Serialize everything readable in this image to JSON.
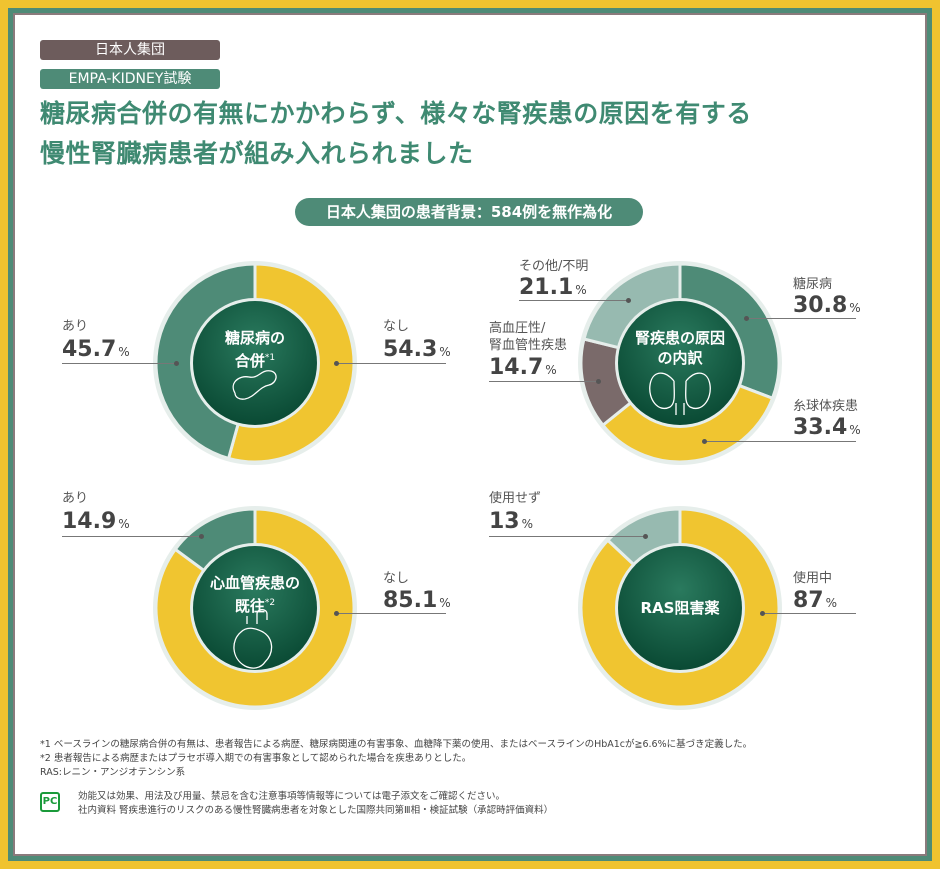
{
  "tags": {
    "population": "日本人集団",
    "trial": "EMPA-KIDNEY試験"
  },
  "title": {
    "line1": "糖尿病合併の有無にかかわらず、様々な腎疾患の原因を有する",
    "line2": "慢性腎臓病患者が組み入れられました"
  },
  "subtitle": "日本人集団の患者背景：584例を無作為化",
  "colors": {
    "green": "#4e8b77",
    "yellow": "#f0c530",
    "mauve": "#7a6a6a",
    "light_green": "#97bab0",
    "center": "#0f5a40"
  },
  "chart_data": [
    {
      "type": "pie",
      "title": "糖尿病の合併",
      "title_line1": "糖尿病の",
      "title_line2": "合併",
      "note_mark": "*1",
      "icon": "pancreas-icon",
      "unit": "%",
      "slices": [
        {
          "label": "なし",
          "value": 54.3,
          "color": "#f0c530"
        },
        {
          "label": "あり",
          "value": 45.7,
          "color": "#4e8b77"
        }
      ]
    },
    {
      "type": "pie",
      "title": "腎疾患の原因の内訳",
      "title_line1": "腎疾患の原因",
      "title_line2": "の内訳",
      "icon": "kidney-icon",
      "unit": "%",
      "slices": [
        {
          "label": "糖尿病",
          "value": 30.8,
          "color": "#4e8b77"
        },
        {
          "label": "糸球体疾患",
          "value": 33.4,
          "color": "#f0c530"
        },
        {
          "label": "高血圧性/腎血管性疾患",
          "label_line1": "高血圧性/",
          "label_line2": "腎血管性疾患",
          "value": 14.7,
          "color": "#7a6a6a"
        },
        {
          "label": "その他/不明",
          "value": 21.1,
          "color": "#97bab0"
        }
      ]
    },
    {
      "type": "pie",
      "title": "心血管疾患の既往",
      "title_line1": "心血管疾患の",
      "title_line2": "既往",
      "note_mark": "*2",
      "icon": "heart-icon",
      "unit": "%",
      "slices": [
        {
          "label": "なし",
          "value": 85.1,
          "color": "#f0c530"
        },
        {
          "label": "あり",
          "value": 14.9,
          "color": "#4e8b77"
        }
      ]
    },
    {
      "type": "pie",
      "title": "RAS阻害薬",
      "title_line1": "RAS阻害薬",
      "unit": "%",
      "slices": [
        {
          "label": "使用中",
          "value": 87.0,
          "color": "#f0c530"
        },
        {
          "label": "使用せず",
          "value": 13.0,
          "color": "#97bab0"
        }
      ]
    }
  ],
  "footnotes": [
    "*1 ベースラインの糖尿病合併の有無は、患者報告による病歴、糖尿病関連の有害事象、血糖降下薬の使用、またはベースラインのHbA1cが≧6.6%に基づき定義した。",
    "*2 患者報告による病歴またはプラセボ導入期での有害事象として認められた場合を疾患ありとした。",
    "RAS:レニン・アンジオテンシン系"
  ],
  "pc_mark": "PC",
  "disclaimer": [
    "効能又は効果、用法及び用量、禁忌を含む注意事項等情報等については電子添文をご確認ください。",
    "社内資料 腎疾患進行のリスクのある慢性腎臓病患者を対象とした国際共同第Ⅲ相・検証試験（承認時評価資料）"
  ]
}
